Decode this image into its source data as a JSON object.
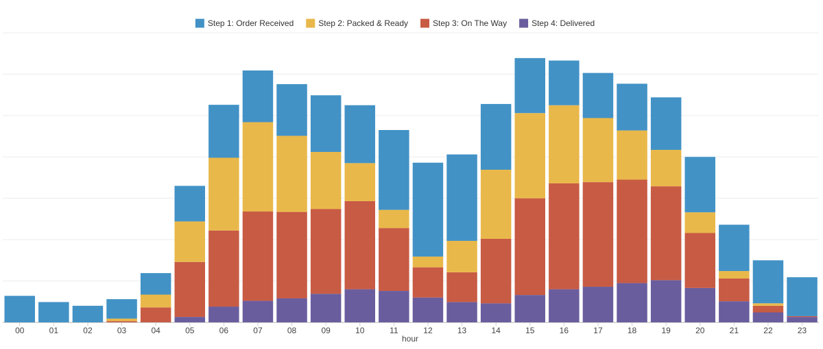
{
  "chart_data": {
    "type": "bar",
    "stacked": true,
    "title": "",
    "xlabel": "hour",
    "ylabel": "",
    "ylim": [
      0,
      70
    ],
    "y_gridlines": [
      0,
      10,
      20,
      30,
      40,
      50,
      60,
      70
    ],
    "y_tick_labels_visible": false,
    "legend_position": "top-center",
    "categories": [
      "00",
      "01",
      "02",
      "03",
      "04",
      "05",
      "06",
      "07",
      "08",
      "09",
      "10",
      "11",
      "12",
      "13",
      "14",
      "15",
      "16",
      "17",
      "18",
      "19",
      "20",
      "21",
      "22",
      "23"
    ],
    "series": [
      {
        "name": "Step 4: Delivered",
        "color": "#6a5d9e",
        "values": [
          0.0,
          0.0,
          0.0,
          0.0,
          0.0,
          1.3,
          3.8,
          5.2,
          5.8,
          6.9,
          8.0,
          7.6,
          6.0,
          4.9,
          4.6,
          6.6,
          8.0,
          8.6,
          9.5,
          10.2,
          8.3,
          5.1,
          2.4,
          1.3
        ]
      },
      {
        "name": "Step 3: On The Way",
        "color": "#c85b44",
        "values": [
          0.0,
          0.0,
          0.0,
          0.3,
          3.6,
          13.3,
          18.4,
          21.6,
          20.9,
          20.5,
          21.3,
          15.2,
          7.3,
          7.2,
          15.6,
          23.4,
          25.6,
          25.3,
          25.0,
          22.7,
          13.3,
          5.5,
          1.6,
          0.2
        ]
      },
      {
        "name": "Step 2: Packed & Ready",
        "color": "#e9b84a",
        "values": [
          0.0,
          0.0,
          0.0,
          0.6,
          3.1,
          9.8,
          17.6,
          21.6,
          18.4,
          13.8,
          9.2,
          4.4,
          2.6,
          7.6,
          16.7,
          20.6,
          18.9,
          15.5,
          11.9,
          8.8,
          5.0,
          1.8,
          0.6,
          0.0
        ]
      },
      {
        "name": "Step 1: Order Received",
        "color": "#4292c6",
        "values": [
          6.4,
          4.9,
          4.0,
          4.7,
          5.2,
          8.6,
          12.8,
          12.5,
          12.5,
          13.7,
          14.0,
          19.3,
          22.7,
          20.9,
          15.9,
          13.3,
          10.8,
          10.9,
          11.3,
          12.7,
          13.4,
          11.2,
          10.4,
          9.4
        ]
      }
    ]
  }
}
